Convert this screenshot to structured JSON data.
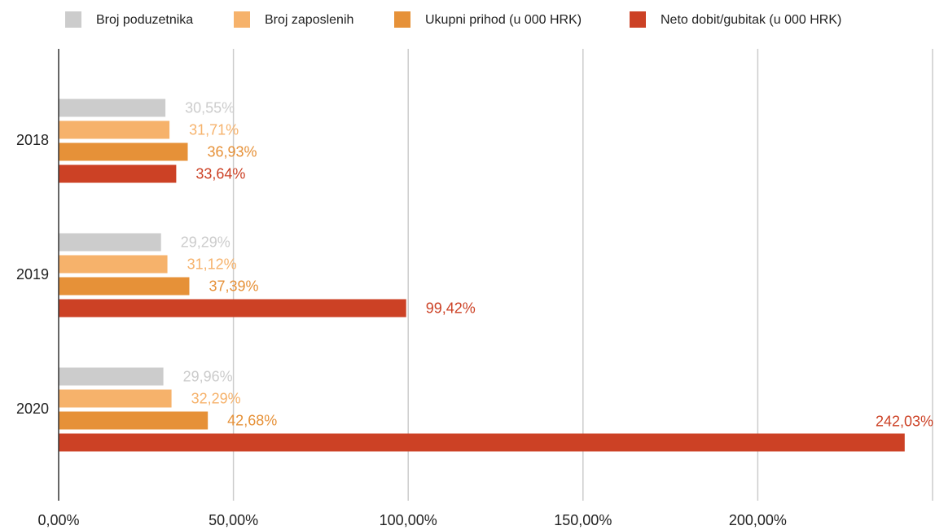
{
  "chart_data": {
    "type": "bar",
    "orientation": "horizontal",
    "categories": [
      "2018",
      "2019",
      "2020"
    ],
    "series": [
      {
        "name": "Broj poduzetnika",
        "color": "#cccccc",
        "values": [
          30.55,
          29.29,
          29.96
        ],
        "value_labels": [
          "30,55%",
          "29,29%",
          "29,96%"
        ]
      },
      {
        "name": "Broj zaposlenih",
        "color": "#f6b26b",
        "values": [
          31.71,
          31.12,
          32.29
        ],
        "value_labels": [
          "31,71%",
          "31,12%",
          "32,29%"
        ]
      },
      {
        "name": "Ukupni prihod (u 000 HRK)",
        "color": "#e69138",
        "values": [
          36.93,
          37.39,
          42.68
        ],
        "value_labels": [
          "36,93%",
          "37,39%",
          "42,68%"
        ]
      },
      {
        "name": "Neto dobit/gubitak (u 000 HRK)",
        "color": "#cc4125",
        "values": [
          33.64,
          99.42,
          242.03
        ],
        "value_labels": [
          "33,64%",
          "99,42%",
          "242,03%"
        ]
      }
    ],
    "xlim": [
      0,
      250
    ],
    "xticks": [
      {
        "value": 0,
        "label": "0,00%"
      },
      {
        "value": 50,
        "label": "50,00%"
      },
      {
        "value": 100,
        "label": "100,00%"
      },
      {
        "value": 150,
        "label": "150,00%"
      },
      {
        "value": 200,
        "label": "200,00%"
      }
    ],
    "grid": true,
    "legend": "top"
  }
}
